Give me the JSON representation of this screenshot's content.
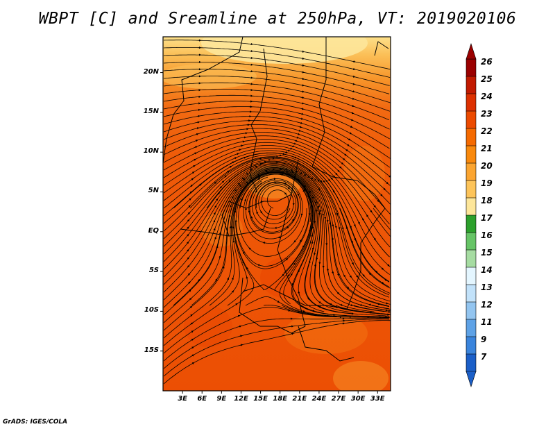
{
  "title": "WBPT [C] and Sreamline at 250hPa, VT: 2019020106",
  "credit": "GrADS: IGES/COLA",
  "map": {
    "lat_labels": [
      "20N",
      "15N",
      "10N",
      "5N",
      "EQ",
      "5S",
      "10S",
      "15S"
    ],
    "lat_values": [
      20,
      15,
      10,
      5,
      0,
      -5,
      -10,
      -15
    ],
    "lon_labels": [
      "3E",
      "6E",
      "9E",
      "12E",
      "15E",
      "18E",
      "21E",
      "24E",
      "27E",
      "30E",
      "33E"
    ],
    "lon_values": [
      3,
      6,
      9,
      12,
      15,
      18,
      21,
      24,
      27,
      30,
      33
    ],
    "lat_range": [
      -20,
      24.5
    ],
    "lon_range": [
      0,
      35
    ],
    "field": "wet-bulb potential temperature",
    "overlay": "streamlines"
  },
  "colorbar": {
    "labels": [
      "26",
      "25",
      "24",
      "23",
      "22",
      "21",
      "20",
      "19",
      "18",
      "17",
      "16",
      "15",
      "14",
      "13",
      "12",
      "11",
      "9",
      "7"
    ],
    "colors": [
      "#9b0000",
      "#c21a00",
      "#dd3000",
      "#ec4a00",
      "#f56a00",
      "#f9890d",
      "#fba531",
      "#fdc45a",
      "#fde69a",
      "#2ca02c",
      "#66c466",
      "#a6dca2",
      "#e4f6ff",
      "#c2e2fa",
      "#93c5f0",
      "#5ea2e6",
      "#3a84dc",
      "#1b5fc8"
    ],
    "extend": "both"
  }
}
